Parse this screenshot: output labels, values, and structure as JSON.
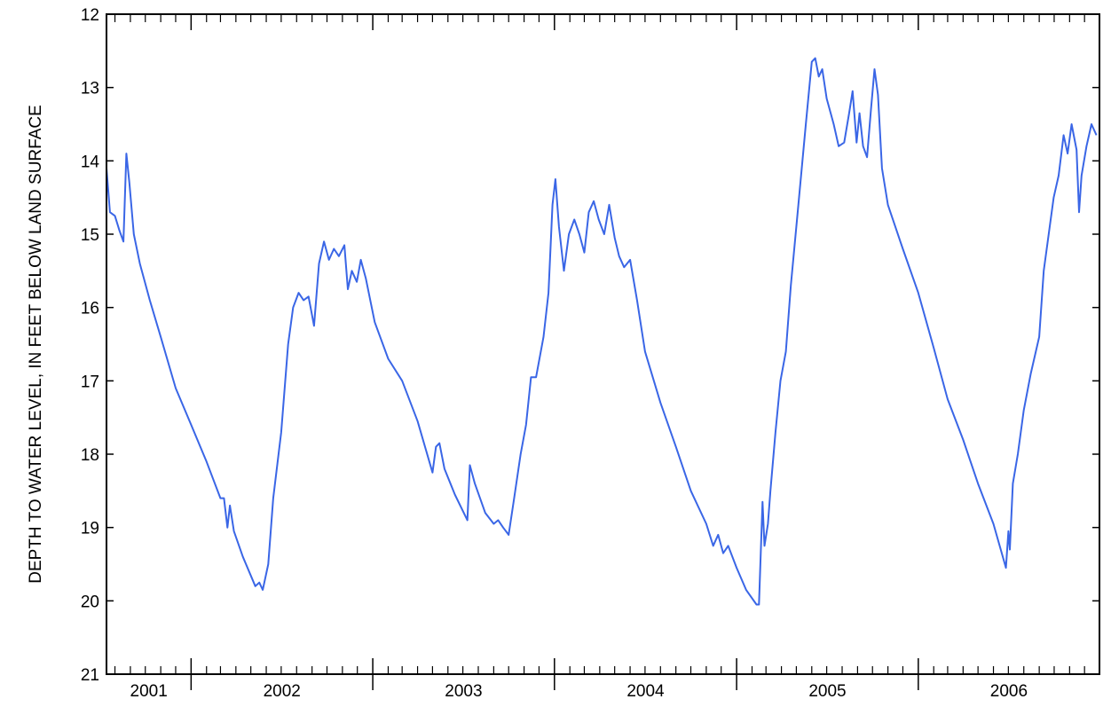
{
  "chart_data": {
    "type": "line",
    "title": "",
    "xlabel": "",
    "ylabel": "DEPTH TO WATER LEVEL, IN FEET BELOW LAND SURFACE",
    "y_axis_inverted": true,
    "ylim": [
      12,
      21
    ],
    "yticks": [
      12,
      13,
      14,
      15,
      16,
      17,
      18,
      19,
      20,
      21
    ],
    "xlim": [
      "2001-07-15",
      "2006-12-31"
    ],
    "year_labels": [
      "2001",
      "2002",
      "2003",
      "2004",
      "2005",
      "2006"
    ],
    "grid": false,
    "line_color": "#3A66E6",
    "series": [
      {
        "name": "",
        "points": [
          [
            "2001-07-15",
            14.1
          ],
          [
            "2001-07-22",
            14.7
          ],
          [
            "2001-08-01",
            14.75
          ],
          [
            "2001-08-10",
            14.95
          ],
          [
            "2001-08-18",
            15.1
          ],
          [
            "2001-08-24",
            13.9
          ],
          [
            "2001-08-30",
            14.3
          ],
          [
            "2001-09-08",
            15.0
          ],
          [
            "2001-09-20",
            15.4
          ],
          [
            "2001-10-10",
            15.9
          ],
          [
            "2001-11-01",
            16.4
          ],
          [
            "2001-12-01",
            17.1
          ],
          [
            "2002-01-01",
            17.6
          ],
          [
            "2002-02-01",
            18.1
          ],
          [
            "2002-03-01",
            18.6
          ],
          [
            "2002-03-08",
            18.6
          ],
          [
            "2002-03-15",
            19.0
          ],
          [
            "2002-03-20",
            18.7
          ],
          [
            "2002-03-28",
            19.05
          ],
          [
            "2002-04-15",
            19.4
          ],
          [
            "2002-05-10",
            19.8
          ],
          [
            "2002-05-18",
            19.75
          ],
          [
            "2002-05-25",
            19.85
          ],
          [
            "2002-06-05",
            19.5
          ],
          [
            "2002-06-15",
            18.6
          ],
          [
            "2002-07-01",
            17.7
          ],
          [
            "2002-07-15",
            16.5
          ],
          [
            "2002-07-25",
            16.0
          ],
          [
            "2002-08-05",
            15.8
          ],
          [
            "2002-08-15",
            15.9
          ],
          [
            "2002-08-25",
            15.85
          ],
          [
            "2002-09-05",
            16.25
          ],
          [
            "2002-09-15",
            15.4
          ],
          [
            "2002-09-25",
            15.1
          ],
          [
            "2002-10-05",
            15.35
          ],
          [
            "2002-10-15",
            15.2
          ],
          [
            "2002-10-25",
            15.3
          ],
          [
            "2002-11-05",
            15.15
          ],
          [
            "2002-11-12",
            15.75
          ],
          [
            "2002-11-20",
            15.5
          ],
          [
            "2002-11-30",
            15.65
          ],
          [
            "2002-12-08",
            15.35
          ],
          [
            "2002-12-18",
            15.6
          ],
          [
            "2003-01-05",
            16.2
          ],
          [
            "2003-02-01",
            16.7
          ],
          [
            "2003-03-01",
            17.0
          ],
          [
            "2003-04-01",
            17.55
          ],
          [
            "2003-05-01",
            18.25
          ],
          [
            "2003-05-08",
            17.9
          ],
          [
            "2003-05-15",
            17.85
          ],
          [
            "2003-05-25",
            18.2
          ],
          [
            "2003-06-15",
            18.55
          ],
          [
            "2003-07-10",
            18.9
          ],
          [
            "2003-07-15",
            18.15
          ],
          [
            "2003-07-25",
            18.4
          ],
          [
            "2003-08-15",
            18.8
          ],
          [
            "2003-09-01",
            18.95
          ],
          [
            "2003-09-10",
            18.9
          ],
          [
            "2003-09-20",
            19.0
          ],
          [
            "2003-10-01",
            19.1
          ],
          [
            "2003-10-12",
            18.6
          ],
          [
            "2003-10-25",
            18.0
          ],
          [
            "2003-11-05",
            17.6
          ],
          [
            "2003-11-15",
            16.95
          ],
          [
            "2003-11-25",
            16.95
          ],
          [
            "2003-12-10",
            16.4
          ],
          [
            "2003-12-20",
            15.8
          ],
          [
            "2003-12-28",
            14.6
          ],
          [
            "2004-01-03",
            14.25
          ],
          [
            "2004-01-10",
            14.9
          ],
          [
            "2004-01-20",
            15.5
          ],
          [
            "2004-01-30",
            15.0
          ],
          [
            "2004-02-10",
            14.8
          ],
          [
            "2004-02-20",
            15.0
          ],
          [
            "2004-03-01",
            15.25
          ],
          [
            "2004-03-10",
            14.7
          ],
          [
            "2004-03-20",
            14.55
          ],
          [
            "2004-03-30",
            14.8
          ],
          [
            "2004-04-10",
            15.0
          ],
          [
            "2004-04-20",
            14.6
          ],
          [
            "2004-05-01",
            15.05
          ],
          [
            "2004-05-10",
            15.3
          ],
          [
            "2004-05-20",
            15.45
          ],
          [
            "2004-06-01",
            15.35
          ],
          [
            "2004-06-15",
            15.9
          ],
          [
            "2004-07-01",
            16.6
          ],
          [
            "2004-08-01",
            17.3
          ],
          [
            "2004-09-01",
            17.9
          ],
          [
            "2004-10-01",
            18.5
          ],
          [
            "2004-11-01",
            18.95
          ],
          [
            "2004-11-15",
            19.25
          ],
          [
            "2004-11-25",
            19.1
          ],
          [
            "2004-12-05",
            19.35
          ],
          [
            "2004-12-15",
            19.25
          ],
          [
            "2005-01-01",
            19.55
          ],
          [
            "2005-01-20",
            19.85
          ],
          [
            "2005-02-10",
            20.05
          ],
          [
            "2005-02-15",
            20.05
          ],
          [
            "2005-02-22",
            18.65
          ],
          [
            "2005-02-26",
            19.25
          ],
          [
            "2005-03-05",
            18.95
          ],
          [
            "2005-03-10",
            18.5
          ],
          [
            "2005-03-20",
            17.7
          ],
          [
            "2005-03-30",
            17.0
          ],
          [
            "2005-04-10",
            16.6
          ],
          [
            "2005-04-20",
            15.7
          ],
          [
            "2005-05-05",
            14.6
          ],
          [
            "2005-05-20",
            13.5
          ],
          [
            "2005-06-01",
            12.65
          ],
          [
            "2005-06-08",
            12.6
          ],
          [
            "2005-06-15",
            12.85
          ],
          [
            "2005-06-22",
            12.75
          ],
          [
            "2005-07-01",
            13.15
          ],
          [
            "2005-07-15",
            13.5
          ],
          [
            "2005-07-25",
            13.8
          ],
          [
            "2005-08-05",
            13.75
          ],
          [
            "2005-08-15",
            13.35
          ],
          [
            "2005-08-22",
            13.05
          ],
          [
            "2005-08-30",
            13.75
          ],
          [
            "2005-09-05",
            13.35
          ],
          [
            "2005-09-12",
            13.8
          ],
          [
            "2005-09-20",
            13.95
          ],
          [
            "2005-09-28",
            13.3
          ],
          [
            "2005-10-05",
            12.75
          ],
          [
            "2005-10-12",
            13.1
          ],
          [
            "2005-10-20",
            14.1
          ],
          [
            "2005-11-01",
            14.6
          ],
          [
            "2005-12-01",
            15.2
          ],
          [
            "2006-01-01",
            15.8
          ],
          [
            "2006-02-01",
            16.55
          ],
          [
            "2006-03-01",
            17.25
          ],
          [
            "2006-04-01",
            17.8
          ],
          [
            "2006-05-01",
            18.4
          ],
          [
            "2006-06-01",
            18.95
          ],
          [
            "2006-06-26",
            19.55
          ],
          [
            "2006-07-01",
            19.05
          ],
          [
            "2006-07-04",
            19.3
          ],
          [
            "2006-07-10",
            18.4
          ],
          [
            "2006-07-20",
            18.0
          ],
          [
            "2006-08-01",
            17.4
          ],
          [
            "2006-08-15",
            16.9
          ],
          [
            "2006-09-01",
            16.4
          ],
          [
            "2006-09-10",
            15.5
          ],
          [
            "2006-09-20",
            15.0
          ],
          [
            "2006-09-30",
            14.5
          ],
          [
            "2006-10-10",
            14.2
          ],
          [
            "2006-10-20",
            13.65
          ],
          [
            "2006-10-28",
            13.9
          ],
          [
            "2006-11-05",
            13.5
          ],
          [
            "2006-11-15",
            13.85
          ],
          [
            "2006-11-20",
            14.7
          ],
          [
            "2006-11-25",
            14.2
          ],
          [
            "2006-12-05",
            13.8
          ],
          [
            "2006-12-15",
            13.5
          ],
          [
            "2006-12-25",
            13.65
          ]
        ]
      }
    ]
  }
}
